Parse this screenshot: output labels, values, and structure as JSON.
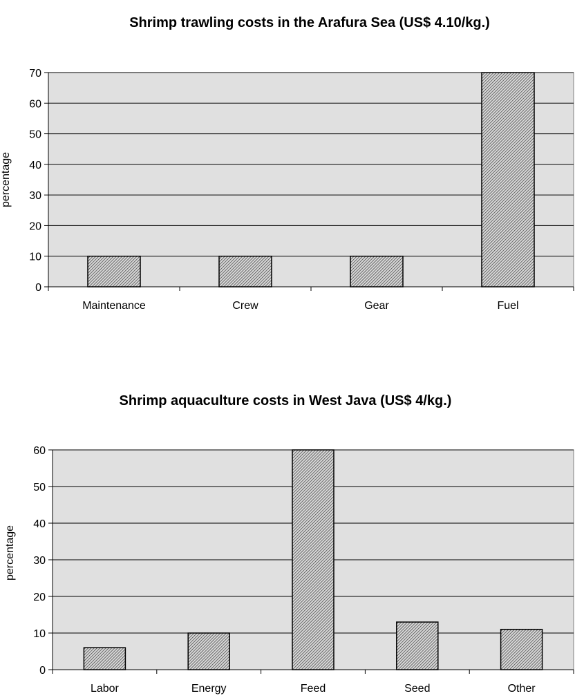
{
  "chart_data": [
    {
      "type": "bar",
      "title": "Shrimp trawling costs in the Arafura Sea (US$ 4.10/kg.)",
      "ylabel": "percentage",
      "xlabel": "",
      "categories": [
        "Maintenance",
        "Crew",
        "Gear",
        "Fuel"
      ],
      "values": [
        10,
        10,
        10,
        70
      ],
      "ylim": [
        0,
        70
      ],
      "yticks": [
        0,
        10,
        20,
        30,
        40,
        50,
        60,
        70
      ],
      "grid": true,
      "plot_background": "#e0e0e0",
      "bar_fill": "hatched gray"
    },
    {
      "type": "bar",
      "title": "Shrimp aquaculture costs in West Java (US$ 4/kg.)",
      "ylabel": "percentage",
      "xlabel": "",
      "categories": [
        "Labor",
        "Energy",
        "Feed",
        "Seed",
        "Other"
      ],
      "values": [
        6,
        10,
        60,
        13,
        11
      ],
      "ylim": [
        0,
        60
      ],
      "yticks": [
        0,
        10,
        20,
        30,
        40,
        50,
        60
      ],
      "grid": true,
      "plot_background": "#e0e0e0",
      "bar_fill": "hatched gray"
    }
  ]
}
